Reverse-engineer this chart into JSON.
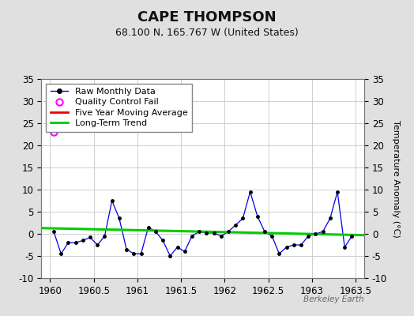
{
  "title": "CAPE THOMPSON",
  "subtitle": "68.100 N, 165.767 W (United States)",
  "ylabel_right": "Temperature Anomaly (°C)",
  "watermark": "Berkeley Earth",
  "xlim": [
    1959.9,
    1963.6
  ],
  "ylim": [
    -10,
    35
  ],
  "yticks": [
    -10,
    -5,
    0,
    5,
    10,
    15,
    20,
    25,
    30,
    35
  ],
  "xticks": [
    1960,
    1960.5,
    1961,
    1961.5,
    1962,
    1962.5,
    1963,
    1963.5
  ],
  "background_color": "#e0e0e0",
  "plot_bg_color": "#ffffff",
  "grid_color": "#c8c8c8",
  "raw_data_x": [
    1960.0417,
    1960.125,
    1960.2083,
    1960.2917,
    1960.375,
    1960.4583,
    1960.5417,
    1960.625,
    1960.7083,
    1960.7917,
    1960.875,
    1960.9583,
    1961.0417,
    1961.125,
    1961.2083,
    1961.2917,
    1961.375,
    1961.4583,
    1961.5417,
    1961.625,
    1961.7083,
    1961.7917,
    1961.875,
    1961.9583,
    1962.0417,
    1962.125,
    1962.2083,
    1962.2917,
    1962.375,
    1962.4583,
    1962.5417,
    1962.625,
    1962.7083,
    1962.7917,
    1962.875,
    1962.9583,
    1963.0417,
    1963.125,
    1963.2083,
    1963.2917,
    1963.375,
    1963.4583
  ],
  "raw_data_y": [
    0.5,
    -4.5,
    -2.0,
    -2.0,
    -1.5,
    -0.8,
    -2.5,
    -0.5,
    7.5,
    3.5,
    -3.5,
    -4.5,
    -4.5,
    1.5,
    0.5,
    -1.5,
    -5.0,
    -3.0,
    -4.0,
    -0.5,
    0.5,
    0.2,
    0.2,
    -0.5,
    0.5,
    2.0,
    3.5,
    9.5,
    4.0,
    0.5,
    -0.5,
    -4.5,
    -3.0,
    -2.5,
    -2.5,
    -0.5,
    0.0,
    0.5,
    3.5,
    9.5,
    -3.0,
    -0.5
  ],
  "qc_fail_x": [
    1960.0417
  ],
  "qc_fail_y": [
    23.0
  ],
  "trend_x": [
    1959.9,
    1963.6
  ],
  "trend_y": [
    1.3,
    -0.3
  ],
  "line_color": "#0000ee",
  "marker_color": "#000000",
  "trend_color": "#00cc00",
  "mavg_color": "#ee0000",
  "qc_color": "#ff00ff",
  "title_fontsize": 13,
  "subtitle_fontsize": 9,
  "tick_fontsize": 8.5,
  "ylabel_fontsize": 8,
  "watermark_fontsize": 7.5,
  "legend_fontsize": 8
}
